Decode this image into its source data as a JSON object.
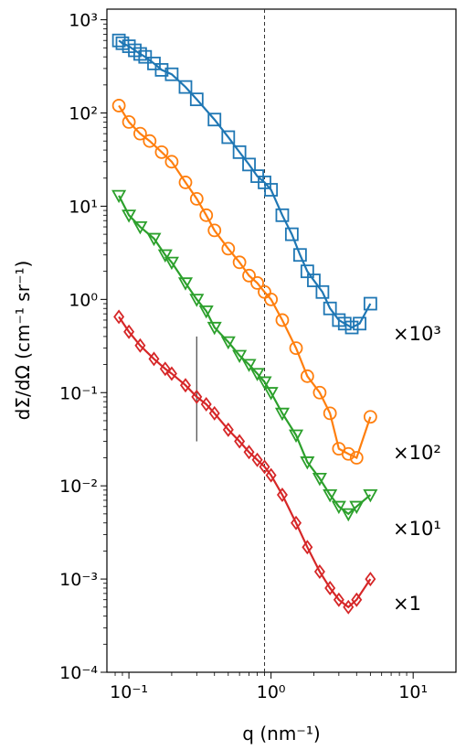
{
  "chart_data": {
    "type": "line",
    "xlabel": "q (nm⁻¹)",
    "ylabel": "dΣ/dΩ (cm⁻¹ sr⁻¹)",
    "xscale": "log",
    "yscale": "log",
    "xlim": [
      0.07,
      20
    ],
    "ylim": [
      0.0001,
      1300
    ],
    "x_ticks": [
      0.1,
      1,
      10
    ],
    "x_tick_labels": [
      "10⁻¹",
      "10⁰",
      "10¹"
    ],
    "y_ticks": [
      0.0001,
      0.001,
      0.01,
      0.1,
      1,
      10,
      100,
      1000
    ],
    "y_tick_labels": [
      "10⁻⁴",
      "10⁻³",
      "10⁻²",
      "10⁻¹",
      "10⁰",
      "10¹",
      "10²",
      "10³"
    ],
    "vline_x": 0.9,
    "reference_bar": {
      "x": 0.3,
      "y_low": 0.03,
      "y_high": 0.4
    },
    "grid": false,
    "series": [
      {
        "color": "#1f77b4",
        "marker": "square",
        "x": [
          0.085,
          0.09,
          0.1,
          0.11,
          0.12,
          0.13,
          0.15,
          0.17,
          0.2,
          0.25,
          0.3,
          0.4,
          0.5,
          0.6,
          0.7,
          0.8,
          0.9,
          1.0,
          1.2,
          1.4,
          1.6,
          1.8,
          2.0,
          2.3,
          2.6,
          3.0,
          3.3,
          3.7,
          4.2,
          5.0
        ],
        "values": [
          600,
          560,
          520,
          470,
          430,
          400,
          340,
          290,
          260,
          190,
          140,
          85,
          55,
          38,
          28,
          21,
          18,
          15,
          8,
          5,
          3,
          2,
          1.6,
          1.2,
          0.8,
          0.6,
          0.55,
          0.5,
          0.55,
          0.9
        ]
      },
      {
        "color": "#ff7f0e",
        "marker": "circle",
        "x": [
          0.085,
          0.1,
          0.12,
          0.14,
          0.17,
          0.2,
          0.25,
          0.3,
          0.35,
          0.4,
          0.5,
          0.6,
          0.7,
          0.8,
          0.9,
          1.0,
          1.2,
          1.5,
          1.8,
          2.2,
          2.6,
          3.0,
          3.5,
          4.0,
          5.0
        ],
        "values": [
          120,
          80,
          60,
          50,
          38,
          30,
          18,
          12,
          8,
          5.5,
          3.5,
          2.5,
          1.8,
          1.5,
          1.2,
          1.0,
          0.6,
          0.3,
          0.15,
          0.1,
          0.06,
          0.025,
          0.022,
          0.02,
          0.055
        ]
      },
      {
        "color": "#2ca02c",
        "marker": "triangle-down",
        "x": [
          0.085,
          0.1,
          0.12,
          0.15,
          0.18,
          0.2,
          0.25,
          0.3,
          0.35,
          0.4,
          0.5,
          0.6,
          0.7,
          0.8,
          0.9,
          1.0,
          1.2,
          1.5,
          1.8,
          2.2,
          2.6,
          3.0,
          3.5,
          4.0,
          5.0
        ],
        "values": [
          13,
          8,
          6,
          4.5,
          3,
          2.5,
          1.5,
          1.0,
          0.75,
          0.5,
          0.35,
          0.25,
          0.2,
          0.16,
          0.13,
          0.1,
          0.06,
          0.035,
          0.018,
          0.012,
          0.008,
          0.006,
          0.005,
          0.006,
          0.008
        ]
      },
      {
        "color": "#d62728",
        "marker": "diamond",
        "x": [
          0.085,
          0.1,
          0.12,
          0.15,
          0.18,
          0.2,
          0.25,
          0.3,
          0.35,
          0.4,
          0.5,
          0.6,
          0.7,
          0.8,
          0.9,
          1.0,
          1.2,
          1.5,
          1.8,
          2.2,
          2.6,
          3.0,
          3.5,
          4.0,
          5.0
        ],
        "values": [
          0.65,
          0.45,
          0.32,
          0.23,
          0.18,
          0.16,
          0.12,
          0.09,
          0.075,
          0.06,
          0.04,
          0.03,
          0.023,
          0.019,
          0.016,
          0.013,
          0.008,
          0.004,
          0.0022,
          0.0012,
          0.0008,
          0.0006,
          0.0005,
          0.0006,
          0.001
        ]
      }
    ],
    "scale_labels": [
      "×10³",
      "×10²",
      "×10¹",
      "×1"
    ]
  }
}
